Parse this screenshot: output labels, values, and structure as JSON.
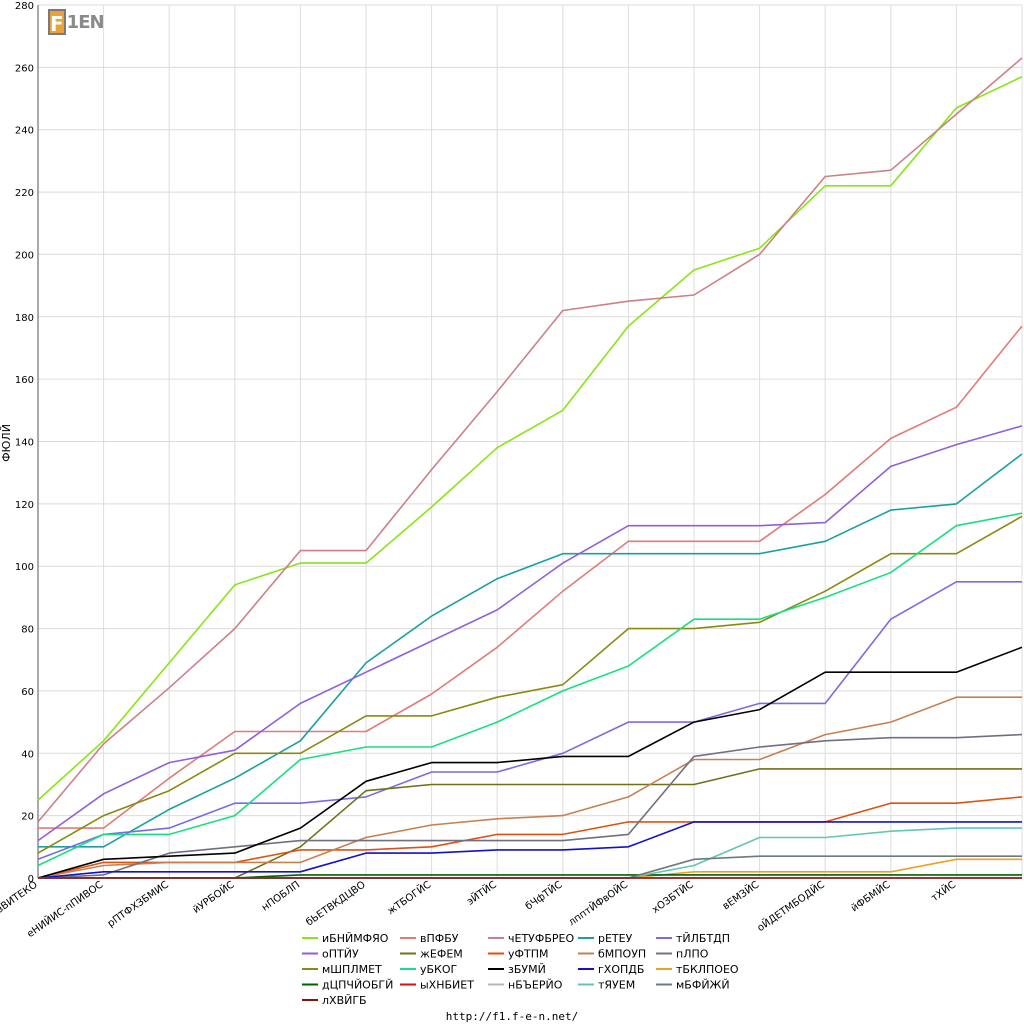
{
  "logo": {
    "initial": "F",
    "rest": "1EN"
  },
  "footer": {
    "url": "http://f1.f-e-n.net/"
  },
  "chart_data": {
    "type": "line",
    "ylabel": "ФЮЛЙ",
    "ylim": [
      0,
      280
    ],
    "yticks": [
      0,
      20,
      40,
      60,
      80,
      100,
      120,
      140,
      160,
      180,
      200,
      220,
      240,
      260,
      280
    ],
    "grid": true,
    "legend_position": "bottom",
    "categories": [
      "вВИТЕКО",
      "еНИЙИС-пПИВОС",
      "рПТФХЗБМИС",
      "йУРБОЙС",
      "нПОБЛП",
      "бЬЕТВКДЦВО",
      "жТБОГЙС",
      "эЙТЙС",
      "бЧфТЙС",
      "лпптЙФвОЙС",
      "хОЗБТЙС",
      "вЕМЗЙС",
      "оЙДЕТМБОДЙС",
      "йФБМЙС",
      "тХЙС",
      ""
    ],
    "series": [
      {
        "name": "иБНЙМФЯО",
        "color": "#88e614",
        "values": [
          25,
          44,
          69,
          94,
          101,
          101,
          119,
          138,
          150,
          177,
          195,
          202,
          222,
          222,
          247,
          257
        ]
      },
      {
        "name": "вПФБУ",
        "color": "#e07c76",
        "values": [
          16,
          16,
          32,
          47,
          47,
          47,
          59,
          74,
          92,
          108,
          108,
          108,
          123,
          141,
          151,
          177
        ]
      },
      {
        "name": "чЕТУФБРЕО",
        "color": "#cc8088",
        "values": [
          18,
          43,
          61,
          80,
          105,
          105,
          131,
          156,
          182,
          185,
          187,
          200,
          225,
          227,
          245,
          263
        ]
      },
      {
        "name": "рЕТЕУ",
        "color": "#1aa0a0",
        "values": [
          10,
          10,
          22,
          32,
          44,
          69,
          84,
          96,
          104,
          104,
          104,
          104,
          108,
          118,
          120,
          136
        ]
      },
      {
        "name": "тЙЛБТДП",
        "color": "#7a6ce0",
        "values": [
          6,
          14,
          16,
          24,
          24,
          26,
          34,
          34,
          40,
          50,
          50,
          56,
          56,
          83,
          95,
          95
        ]
      },
      {
        "name": "оПТЙУ",
        "color": "#9060d8",
        "values": [
          12,
          27,
          37,
          41,
          56,
          66,
          76,
          86,
          101,
          113,
          113,
          113,
          114,
          132,
          139,
          145
        ]
      },
      {
        "name": "жЕФЕМ",
        "color": "#707018",
        "values": [
          0,
          0,
          0,
          0,
          10,
          28,
          30,
          30,
          30,
          30,
          30,
          35,
          35,
          35,
          35,
          35
        ]
      },
      {
        "name": "уФТПМ",
        "color": "#e05010",
        "values": [
          0,
          5,
          5,
          5,
          9,
          9,
          10,
          14,
          14,
          18,
          18,
          18,
          18,
          24,
          24,
          26
        ]
      },
      {
        "name": "бМПОУП",
        "color": "#c88050",
        "values": [
          0,
          4,
          5,
          5,
          5,
          13,
          17,
          19,
          20,
          26,
          38,
          38,
          46,
          50,
          58,
          58
        ]
      },
      {
        "name": "пЛПО",
        "color": "#707080",
        "values": [
          0,
          1,
          8,
          10,
          12,
          12,
          12,
          12,
          12,
          14,
          39,
          42,
          44,
          45,
          45,
          46
        ]
      },
      {
        "name": "мШПЛМЕТ",
        "color": "#8a8a10",
        "values": [
          8,
          20,
          28,
          40,
          40,
          52,
          52,
          58,
          62,
          80,
          80,
          82,
          92,
          104,
          104,
          116
        ]
      },
      {
        "name": "уБКОГ",
        "color": "#18e080",
        "values": [
          4,
          14,
          14,
          20,
          38,
          42,
          42,
          50,
          60,
          68,
          83,
          83,
          90,
          98,
          113,
          117
        ]
      },
      {
        "name": "зБУМЙ",
        "color": "#000000",
        "values": [
          0,
          6,
          7,
          8,
          16,
          31,
          37,
          37,
          39,
          39,
          50,
          54,
          66,
          66,
          66,
          74
        ]
      },
      {
        "name": "гХОПДБ",
        "color": "#1010d0",
        "values": [
          0,
          2,
          2,
          2,
          2,
          8,
          8,
          9,
          9,
          10,
          18,
          18,
          18,
          18,
          18,
          18
        ]
      },
      {
        "name": "тБКЛПОЕО",
        "color": "#f0a020",
        "values": [
          0,
          0,
          0,
          0,
          0,
          0,
          0,
          0,
          0,
          0,
          2,
          2,
          2,
          2,
          6,
          6
        ]
      },
      {
        "name": "дЦПЧЙОБГЙ",
        "color": "#006000",
        "values": [
          0,
          0,
          0,
          0,
          1,
          1,
          1,
          1,
          1,
          1,
          1,
          1,
          1,
          1,
          1,
          1
        ]
      },
      {
        "name": "ыХНБИЕТ",
        "color": "#d01010",
        "values": [
          0,
          0,
          0,
          0,
          0,
          0,
          0,
          0,
          0,
          0,
          0,
          0,
          0,
          0,
          0,
          0
        ]
      },
      {
        "name": "нБЪЕРЙО",
        "color": "#b8b8b8",
        "values": [
          0,
          0,
          0,
          0,
          0,
          0,
          0,
          0,
          0,
          0,
          0,
          0,
          0,
          0,
          0,
          0
        ]
      },
      {
        "name": "тЯУЕМ",
        "color": "#60c8b0",
        "values": [
          0,
          0,
          0,
          0,
          0,
          0,
          0,
          0,
          0,
          0,
          4,
          13,
          13,
          15,
          16,
          16
        ]
      },
      {
        "name": "мБФЙЖЙ",
        "color": "#707880",
        "values": [
          0,
          0,
          0,
          0,
          0,
          0,
          0,
          0,
          0,
          0,
          6,
          7,
          7,
          7,
          7,
          7
        ]
      },
      {
        "name": "лХВЙГБ",
        "color": "#8a1010",
        "values": [
          0,
          0,
          0,
          0,
          0,
          0,
          0,
          0,
          0,
          0,
          0,
          0,
          0,
          0,
          0,
          0
        ]
      }
    ]
  }
}
